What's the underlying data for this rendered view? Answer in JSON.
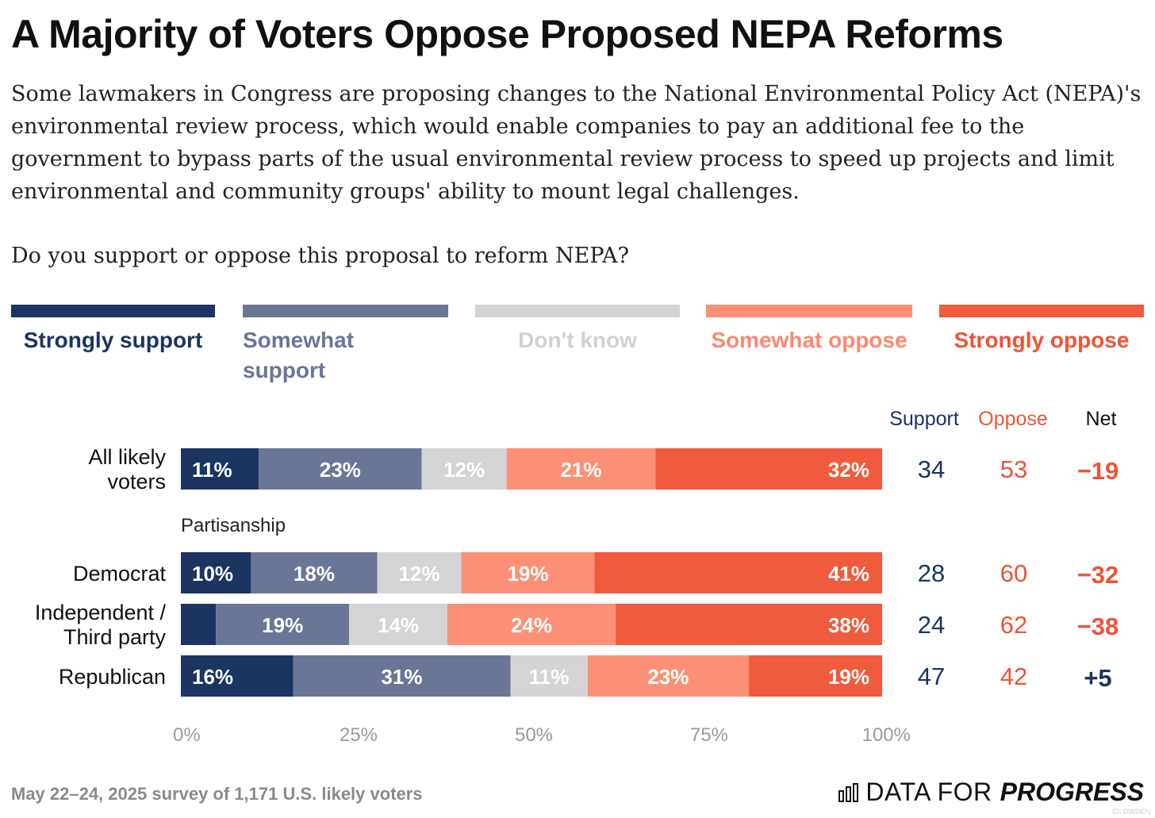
{
  "title": "A Majority of Voters Oppose Proposed NEPA Reforms",
  "subtitle": "Some lawmakers in Congress are proposing changes to the National Environmental Policy Act (NEPA)'s environmental review process, which would enable companies to pay an additional fee to the government to bypass parts of the usual environmental review process to speed up projects and limit environmental and community groups' ability to mount legal challenges.",
  "question": "Do you support or oppose this proposal to reform NEPA?",
  "legend": [
    {
      "label": "Strongly support",
      "color": "#1b3461",
      "text_color": "#1b3461"
    },
    {
      "label": "Somewhat support",
      "color": "#6b7596",
      "text_color": "#6b7596"
    },
    {
      "label": "Don't know",
      "color": "#d3d4d6",
      "text_color": "#d0d1d3"
    },
    {
      "label": "Somewhat oppose",
      "color": "#fc9077",
      "text_color": "#f98a70"
    },
    {
      "label": "Strongly oppose",
      "color": "#f05a3d",
      "text_color": "#ee5436"
    }
  ],
  "chart_data": {
    "type": "bar",
    "orientation": "horizontal-stacked",
    "categories": [
      "All likely voters",
      "Democrat",
      "Independent / Third party",
      "Republican"
    ],
    "group_label": "Partisanship",
    "series": [
      {
        "name": "Strongly support",
        "values": [
          11,
          10,
          5,
          16
        ],
        "labels": [
          "11%",
          "10%",
          "",
          "16%"
        ]
      },
      {
        "name": "Somewhat support",
        "values": [
          23,
          18,
          19,
          31
        ],
        "labels": [
          "23%",
          "18%",
          "19%",
          "31%"
        ]
      },
      {
        "name": "Don't know",
        "values": [
          12,
          12,
          14,
          11
        ],
        "labels": [
          "12%",
          "12%",
          "14%",
          "11%"
        ]
      },
      {
        "name": "Somewhat oppose",
        "values": [
          21,
          19,
          24,
          23
        ],
        "labels": [
          "21%",
          "19%",
          "24%",
          "23%"
        ]
      },
      {
        "name": "Strongly oppose",
        "values": [
          32,
          41,
          38,
          19
        ],
        "labels": [
          "32%",
          "41%",
          "38%",
          "19%"
        ]
      }
    ],
    "summary_headers": {
      "support": "Support",
      "oppose": "Oppose",
      "net": "Net"
    },
    "support": [
      "34",
      "28",
      "24",
      "47"
    ],
    "oppose": [
      "53",
      "60",
      "62",
      "42"
    ],
    "net": [
      "−19",
      "−32",
      "−38",
      "+5"
    ],
    "xticks": [
      "0%",
      "25%",
      "50%",
      "75%",
      "100%"
    ],
    "xlim": [
      0,
      100
    ]
  },
  "footer": "May 22–24, 2025 survey of 1,171 U.S. likely voters",
  "logo": {
    "part1": "DATA FOR",
    "part2": "PROGRESS"
  },
  "watermark": "ID: DWDEN"
}
